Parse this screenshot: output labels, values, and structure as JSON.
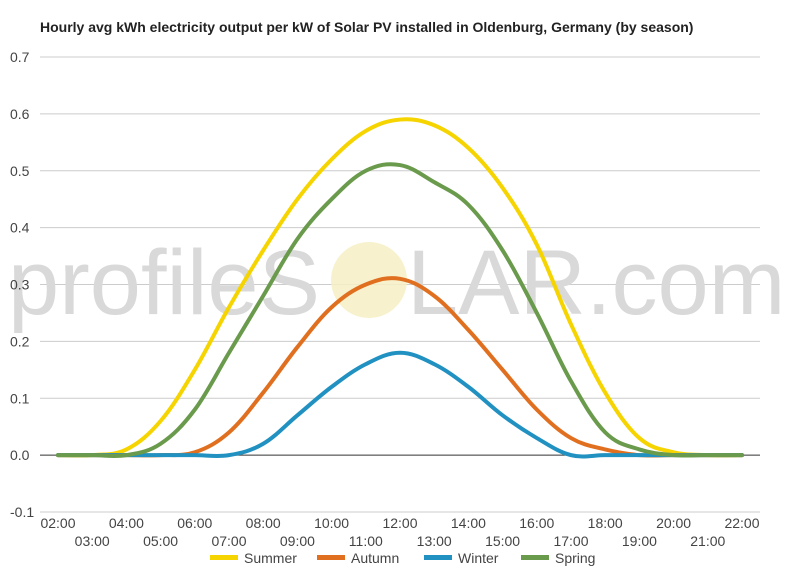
{
  "chart_data": {
    "type": "line",
    "title": "Hourly avg kWh electricity output per kW of Solar PV installed in Oldenburg, Germany (by season)",
    "xlabel": "",
    "ylabel": "",
    "ylim": [
      -0.1,
      0.7
    ],
    "yticks": [
      "0.7",
      "0.6",
      "0.5",
      "0.4",
      "0.3",
      "0.2",
      "0.1",
      "0.0",
      "-0.1"
    ],
    "ytick_values": [
      0.7,
      0.6,
      0.5,
      0.4,
      0.3,
      0.2,
      0.1,
      0.0,
      -0.1
    ],
    "x": [
      "02:00",
      "03:00",
      "04:00",
      "05:00",
      "06:00",
      "07:00",
      "08:00",
      "09:00",
      "10:00",
      "11:00",
      "12:00",
      "13:00",
      "14:00",
      "15:00",
      "16:00",
      "17:00",
      "18:00",
      "19:00",
      "20:00",
      "21:00",
      "22:00"
    ],
    "grid": true,
    "legend_position": "bottom",
    "series": [
      {
        "name": "Summer",
        "color": "#f5d400",
        "values": [
          0.0,
          0.0,
          0.01,
          0.06,
          0.15,
          0.26,
          0.36,
          0.45,
          0.52,
          0.57,
          0.59,
          0.58,
          0.54,
          0.47,
          0.37,
          0.23,
          0.11,
          0.03,
          0.005,
          0.0,
          0.0
        ]
      },
      {
        "name": "Autumn",
        "color": "#e07020",
        "values": [
          0.0,
          0.0,
          0.0,
          0.0,
          0.005,
          0.04,
          0.11,
          0.19,
          0.26,
          0.3,
          0.31,
          0.28,
          0.22,
          0.15,
          0.08,
          0.03,
          0.01,
          0.0,
          0.0,
          0.0,
          0.0
        ]
      },
      {
        "name": "Winter",
        "color": "#2091c0",
        "values": [
          0.0,
          0.0,
          0.0,
          0.0,
          0.0,
          0.0,
          0.02,
          0.07,
          0.12,
          0.16,
          0.18,
          0.16,
          0.12,
          0.07,
          0.03,
          0.0,
          0.0,
          0.0,
          0.0,
          0.0,
          0.0
        ]
      },
      {
        "name": "Spring",
        "color": "#6a9a4c",
        "values": [
          0.0,
          0.0,
          0.0,
          0.02,
          0.08,
          0.18,
          0.28,
          0.38,
          0.45,
          0.5,
          0.51,
          0.48,
          0.44,
          0.36,
          0.25,
          0.13,
          0.04,
          0.01,
          0.0,
          0.0,
          0.0
        ]
      }
    ]
  },
  "watermark": {
    "text_left": "profileS",
    "text_right": "LAR.com"
  }
}
